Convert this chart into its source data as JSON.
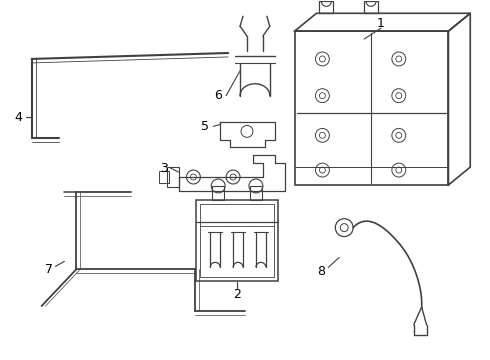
{
  "bg_color": "#ffffff",
  "line_color": "#404040",
  "label_color": "#000000",
  "lw": 1.0
}
